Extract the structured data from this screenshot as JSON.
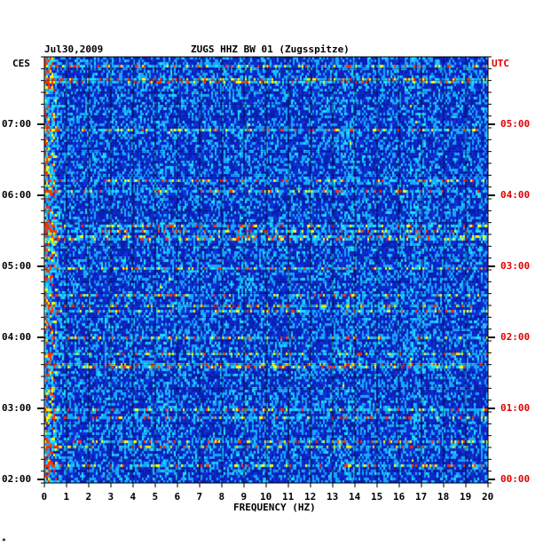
{
  "header": {
    "date": "Jul30,2009",
    "station": "ZUGS HHZ BW 01 (Zugsspitze)"
  },
  "left_tz": "CES",
  "right_tz": "UTC",
  "corner_mark": "*",
  "chart_data": {
    "type": "heatmap",
    "title": "ZUGS HHZ BW 01 (Zugsspitze)",
    "xlabel": "FREQUENCY (HZ)",
    "ylabel": "",
    "xlim": [
      0,
      20
    ],
    "x_ticks": [
      "0",
      "1",
      "2",
      "3",
      "4",
      "5",
      "6",
      "7",
      "8",
      "9",
      "10",
      "11",
      "12",
      "13",
      "14",
      "15",
      "16",
      "17",
      "18",
      "19",
      "20"
    ],
    "y_ticks_left": [
      "07:00",
      "06:00",
      "05:00",
      "04:00",
      "03:00",
      "02:00"
    ],
    "y_ticks_right": [
      "05:00",
      "04:00",
      "03:00",
      "02:00",
      "01:00",
      "00:00"
    ],
    "y_tick_hours_from_top": [
      0.95,
      1.95,
      2.95,
      3.95,
      4.95,
      5.95
    ],
    "hours_span": 6,
    "colors": {
      "background": "#0a1fb4",
      "low": "#1030d8",
      "mid": "#18a8ff",
      "high": "#ffff00",
      "peak": "#ff3000",
      "grid": "#000000",
      "right_labels": "#e00000"
    },
    "hot_bands_hz": [
      0.2,
      5.4,
      9.0,
      13.6,
      16.8
    ],
    "grid": true
  }
}
